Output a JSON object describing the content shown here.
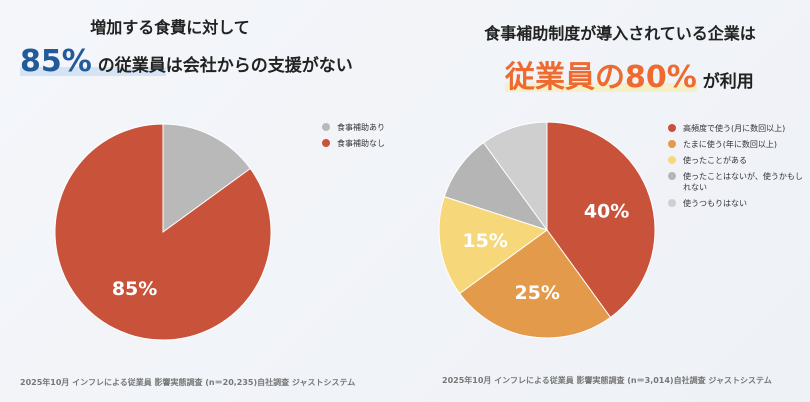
{
  "left": {
    "title": "増加する食費に対して",
    "headline_big": "85%",
    "headline_mid": " の従業員",
    "headline_rest": "は会社からの支援がない",
    "source": "2025年10月 インフレによる従業員 影響実態調査 (n＝20,235)自社調査 ジャストシステム"
  },
  "right": {
    "title": "食事補助制度が導入されている企業は",
    "headline_mid": "従業員の",
    "headline_big": "80%",
    "headline_rest": " が利用",
    "source": "2025年10月 インフレによる従業員 影響実態調査 (n＝3,014)自社調査 ジャストシステム"
  },
  "chart_data": [
    {
      "type": "pie",
      "categories": [
        "食事補助あり",
        "食事補助なし"
      ],
      "values": [
        15,
        85
      ],
      "colors": [
        "#b9b9b9",
        "#c9533a"
      ],
      "data_labels": [
        "",
        "85%"
      ],
      "legend": "right"
    },
    {
      "type": "pie",
      "categories": [
        "高頻度で使う(月に数回以上)",
        "たまに使う(年に数回以上)",
        "使ったことがある",
        "使ったことはないが、使うかもしれない",
        "使うつもりはない"
      ],
      "values": [
        40,
        25,
        15,
        10,
        10
      ],
      "colors": [
        "#c9533a",
        "#e39a4a",
        "#f6d87a",
        "#b5b5b5",
        "#cfcfcf"
      ],
      "data_labels": [
        "40%",
        "25%",
        "15%",
        "",
        ""
      ],
      "legend": "right"
    }
  ]
}
